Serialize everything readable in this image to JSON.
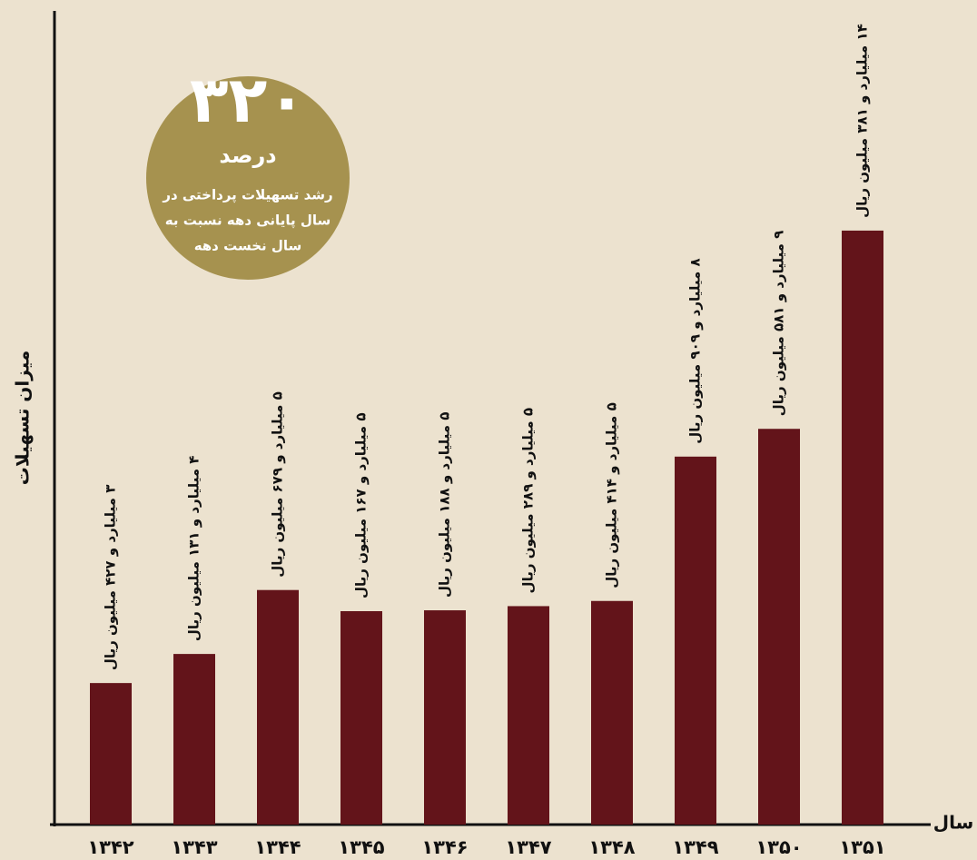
{
  "chart_data": {
    "type": "bar",
    "y_label": "میزان تسهیلات",
    "x_label": "سال",
    "categories": [
      "۱۳۴۲",
      "۱۳۴۳",
      "۱۳۴۴",
      "۱۳۴۵",
      "۱۳۴۶",
      "۱۳۴۷",
      "۱۳۴۸",
      "۱۳۴۹",
      "۱۳۵۰",
      "۱۳۵۱"
    ],
    "values": [
      3427,
      4131,
      5679,
      5167,
      5188,
      5289,
      5414,
      8909,
      9581,
      14381
    ],
    "value_labels": [
      "۳ میلیارد و ۴۲۷ میلیون ریال",
      "۴ میلیارد و ۱۳۱ میلیون ریال",
      "۵ میلیارد و ۶۷۹ میلیون ریال",
      "۵ میلیارد و ۱۶۷ میلیون ریال",
      "۵ میلیارد و ۱۸۸ میلیون ریال",
      "۵ میلیارد و ۲۸۹ میلیون ریال",
      "۵ میلیارد و ۴۱۴ میلیون ریال",
      "۸ میلیارد و ۹۰۹ میلیون ریال",
      "۹ میلیارد و ۵۸۱ میلیون ریال",
      "۱۴ میلیارد و ۳۸۱ میلیون ریال"
    ],
    "color": "#63141a",
    "ylim": [
      0,
      19700
    ],
    "annotation": {
      "value": "۳۲۰",
      "unit": "درصد",
      "lines": [
        "رشد تسهیلات پرداختی در",
        "سال پایانی دهه نسبت به",
        "سال نخست دهه"
      ]
    }
  }
}
